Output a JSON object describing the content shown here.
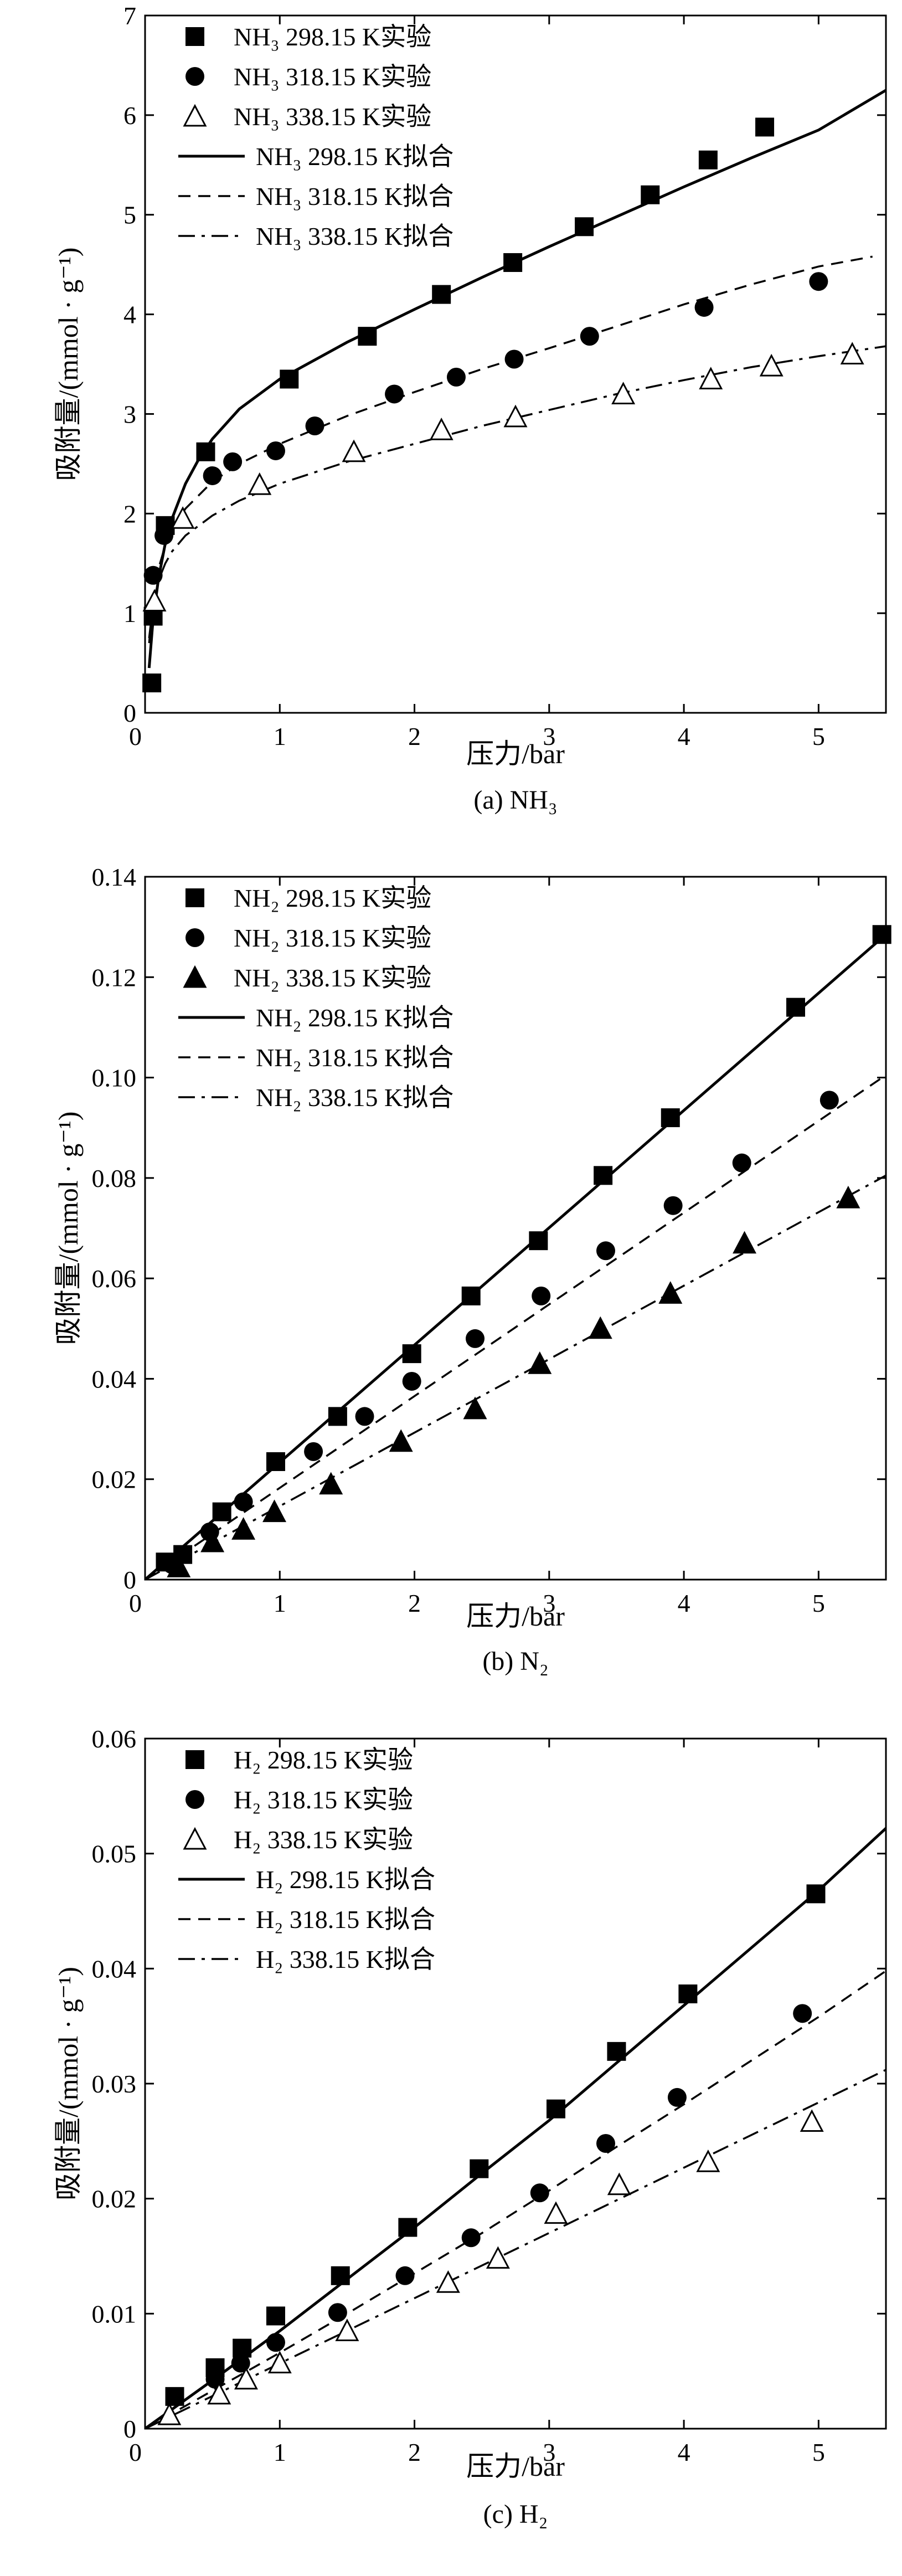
{
  "chart_data": [
    {
      "type": "scatter",
      "caption": "(a) NH₃",
      "xlabel": "压力/bar",
      "ylabel": "吸附量/(mmol · g⁻¹)",
      "xlim": [
        0,
        5.5
      ],
      "ylim": [
        0,
        7
      ],
      "xticks": [
        "0",
        "1",
        "2",
        "3",
        "4",
        "5"
      ],
      "yticks": [
        "0",
        "1",
        "2",
        "3",
        "4",
        "5",
        "6",
        "7"
      ],
      "legend_position": "top-left",
      "series": [
        {
          "name": "NH₃ 298.15 K实验",
          "kind": "points",
          "marker": "square",
          "x": [
            0.05,
            0.06,
            0.15,
            0.45,
            1.07,
            1.65,
            2.2,
            2.73,
            3.26,
            3.75,
            4.18,
            4.6
          ],
          "y": [
            0.3,
            0.97,
            1.88,
            2.62,
            3.35,
            3.78,
            4.2,
            4.52,
            4.88,
            5.2,
            5.55,
            5.88
          ]
        },
        {
          "name": "NH₃ 318.15 K实验",
          "kind": "points",
          "marker": "circle",
          "x": [
            0.06,
            0.14,
            0.5,
            0.65,
            0.97,
            1.26,
            1.85,
            2.31,
            2.74,
            3.3,
            4.15,
            5.0
          ],
          "y": [
            1.38,
            1.78,
            2.38,
            2.52,
            2.63,
            2.88,
            3.2,
            3.37,
            3.55,
            3.78,
            4.07,
            4.33
          ]
        },
        {
          "name": "NH₃ 338.15 K实验",
          "kind": "points",
          "marker": "triangle-open",
          "x": [
            0.07,
            0.28,
            0.85,
            1.55,
            2.2,
            2.75,
            3.55,
            4.2,
            4.65,
            5.25
          ],
          "y": [
            1.12,
            1.95,
            2.29,
            2.62,
            2.84,
            2.97,
            3.2,
            3.35,
            3.48,
            3.6
          ],
          "note": ""
        },
        {
          "name": "NH₃ 298.15 K拟合",
          "kind": "line",
          "dash": "solid",
          "x": [
            0.03,
            0.06,
            0.1,
            0.15,
            0.2,
            0.3,
            0.4,
            0.5,
            0.7,
            1.0,
            1.5,
            2.0,
            2.5,
            3.0,
            3.5,
            4.0,
            4.5,
            5.0,
            5.5
          ],
          "y": [
            0.45,
            0.95,
            1.35,
            1.7,
            1.95,
            2.3,
            2.55,
            2.75,
            3.05,
            3.35,
            3.72,
            4.05,
            4.37,
            4.68,
            4.98,
            5.28,
            5.57,
            5.85,
            6.25
          ]
        },
        {
          "name": "NH₃ 318.15 K拟合",
          "kind": "line",
          "dash": "dashed",
          "x": [
            0.03,
            0.06,
            0.1,
            0.15,
            0.2,
            0.3,
            0.5,
            0.7,
            1.0,
            1.5,
            2.0,
            2.5,
            3.0,
            3.5,
            4.0,
            4.5,
            5.0,
            5.4
          ],
          "y": [
            0.7,
            1.15,
            1.45,
            1.68,
            1.84,
            2.05,
            2.32,
            2.5,
            2.7,
            2.98,
            3.22,
            3.45,
            3.66,
            3.88,
            4.1,
            4.3,
            4.48,
            4.58
          ]
        },
        {
          "name": "NH₃ 338.15 K拟合",
          "kind": "line",
          "dash": "dashdot",
          "x": [
            0.03,
            0.06,
            0.1,
            0.15,
            0.2,
            0.3,
            0.5,
            0.7,
            1.0,
            1.5,
            2.0,
            2.5,
            3.0,
            3.5,
            4.0,
            4.5,
            5.0,
            5.5
          ],
          "y": [
            0.75,
            1.1,
            1.33,
            1.5,
            1.62,
            1.78,
            1.98,
            2.13,
            2.3,
            2.52,
            2.7,
            2.88,
            3.04,
            3.2,
            3.34,
            3.47,
            3.58,
            3.68
          ]
        }
      ]
    },
    {
      "type": "scatter",
      "caption": "(b) N₂",
      "xlabel": "压力/bar",
      "ylabel": "吸附量/(mmol · g⁻¹)",
      "xlim": [
        0,
        5.5
      ],
      "ylim": [
        0,
        0.14
      ],
      "xticks": [
        "0",
        "1",
        "2",
        "3",
        "4",
        "5"
      ],
      "yticks": [
        "0",
        "0.02",
        "0.04",
        "0.06",
        "0.08",
        "0.10",
        "0.12",
        "0.14"
      ],
      "legend_position": "top-left",
      "series": [
        {
          "name": "NH₂ 298.15 K实验",
          "kind": "points",
          "marker": "square",
          "x": [
            0.15,
            0.28,
            0.57,
            0.97,
            1.43,
            1.98,
            2.42,
            2.92,
            3.4,
            3.9,
            4.83,
            5.47
          ],
          "y": [
            0.0035,
            0.005,
            0.0135,
            0.0235,
            0.0325,
            0.045,
            0.0565,
            0.0675,
            0.0805,
            0.092,
            0.114,
            0.1285
          ]
        },
        {
          "name": "NH₂ 318.15 K实验",
          "kind": "points",
          "marker": "circle",
          "x": [
            0.2,
            0.48,
            0.73,
            1.25,
            1.63,
            1.98,
            2.45,
            2.94,
            3.42,
            3.92,
            4.43,
            5.08
          ],
          "y": [
            0.003,
            0.0095,
            0.0155,
            0.0255,
            0.0325,
            0.0395,
            0.048,
            0.0565,
            0.0655,
            0.0745,
            0.083,
            0.0955
          ]
        },
        {
          "name": "NH₂ 338.15 K实验",
          "kind": "points",
          "marker": "triangle-filled",
          "x": [
            0.25,
            0.5,
            0.73,
            0.96,
            1.38,
            1.9,
            2.45,
            2.93,
            3.38,
            3.9,
            4.45,
            5.22
          ],
          "y": [
            0.0025,
            0.0075,
            0.01,
            0.0135,
            0.019,
            0.0275,
            0.034,
            0.043,
            0.05,
            0.057,
            0.067,
            0.076
          ]
        },
        {
          "name": "NH₂ 298.15 K拟合",
          "kind": "line",
          "dash": "solid",
          "x": [
            0,
            5.5
          ],
          "y": [
            0,
            0.1285
          ]
        },
        {
          "name": "NH₂ 318.15 K拟合",
          "kind": "line",
          "dash": "dashed",
          "x": [
            0,
            5.5
          ],
          "y": [
            0,
            0.1005
          ]
        },
        {
          "name": "NH₂ 338.15 K拟合",
          "kind": "line",
          "dash": "dashdot",
          "x": [
            0,
            5.5
          ],
          "y": [
            0,
            0.0805
          ]
        }
      ]
    },
    {
      "type": "scatter",
      "caption": "(c) H₂",
      "xlabel": "压力/bar",
      "ylabel": "吸附量/(mmol · g⁻¹)",
      "xlim": [
        0,
        5.5
      ],
      "ylim": [
        0,
        0.06
      ],
      "xticks": [
        "0",
        "1",
        "2",
        "3",
        "4",
        "5"
      ],
      "yticks": [
        "0",
        "0.01",
        "0.02",
        "0.03",
        "0.04",
        "0.05",
        "0.06"
      ],
      "legend_position": "top-left",
      "series": [
        {
          "name": "H₂ 298.15 K实验",
          "kind": "points",
          "marker": "square",
          "x": [
            0.22,
            0.52,
            0.72,
            0.97,
            1.45,
            1.95,
            2.48,
            3.05,
            3.5,
            4.03,
            4.98
          ],
          "y": [
            0.0028,
            0.0053,
            0.007,
            0.0098,
            0.0133,
            0.0175,
            0.0226,
            0.0278,
            0.0328,
            0.0378,
            0.0465
          ]
        },
        {
          "name": "H₂ 318.15 K实验",
          "kind": "points",
          "marker": "circle",
          "x": [
            0.52,
            0.71,
            0.97,
            1.43,
            1.93,
            2.42,
            2.93,
            3.42,
            3.95,
            4.88
          ],
          "y": [
            0.0043,
            0.0057,
            0.0075,
            0.0101,
            0.0133,
            0.0166,
            0.0205,
            0.0248,
            0.0288,
            0.0361
          ]
        },
        {
          "name": "H₂ 338.15 K实验",
          "kind": "points",
          "marker": "triangle-open",
          "x": [
            0.18,
            0.55,
            0.75,
            1.0,
            1.5,
            2.25,
            2.62,
            3.05,
            3.52,
            4.18,
            4.95
          ],
          "y": [
            0.0012,
            0.003,
            0.0043,
            0.0057,
            0.0085,
            0.0127,
            0.0148,
            0.0187,
            0.0212,
            0.0232,
            0.0267
          ]
        },
        {
          "name": "H₂ 298.15 K拟合",
          "kind": "line",
          "dash": "solid",
          "x": [
            0,
            0.5,
            1.0,
            1.5,
            2.0,
            2.5,
            3.0,
            3.5,
            4.0,
            4.5,
            5.0,
            5.5
          ],
          "y": [
            0,
            0.0042,
            0.0085,
            0.013,
            0.0175,
            0.0222,
            0.0268,
            0.0318,
            0.0368,
            0.0418,
            0.0468,
            0.0522
          ]
        },
        {
          "name": "H₂ 318.15 K拟合",
          "kind": "line",
          "dash": "dashed",
          "x": [
            0,
            0.5,
            1.0,
            1.5,
            2.0,
            2.5,
            3.0,
            3.5,
            4.0,
            4.5,
            5.0,
            5.5
          ],
          "y": [
            0,
            0.0033,
            0.0066,
            0.01,
            0.0135,
            0.017,
            0.0207,
            0.0245,
            0.0282,
            0.032,
            0.0358,
            0.0398
          ]
        },
        {
          "name": "H₂ 338.15 K拟合",
          "kind": "line",
          "dash": "dashdot",
          "x": [
            0,
            5.5
          ],
          "y": [
            0,
            0.0312
          ]
        }
      ]
    }
  ]
}
